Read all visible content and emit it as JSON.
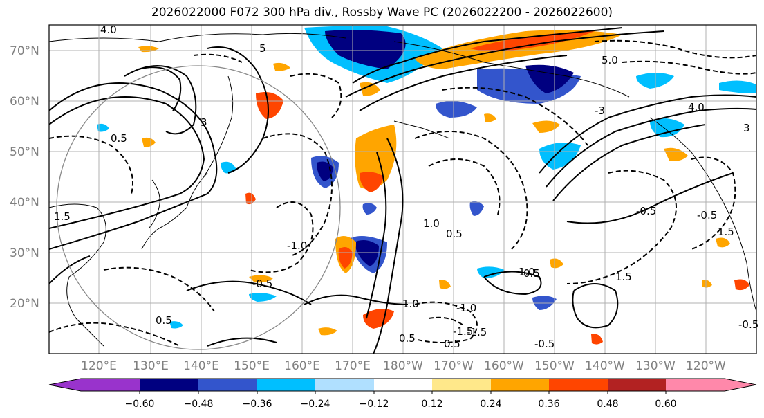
{
  "title": "2026022000 F072 300 hPa div., Rossby Wave PC (2026022200 - 2026022600)",
  "lat_labels": [
    "70°N",
    "60°N",
    "50°N",
    "40°N",
    "30°N",
    "20°N"
  ],
  "lon_labels": [
    "120°E",
    "130°E",
    "140°E",
    "150°E",
    "160°E",
    "170°E",
    "180°W",
    "170°W",
    "160°W",
    "150°W",
    "140°W",
    "130°W",
    "120°W"
  ],
  "colorbar": {
    "ticks": [
      "−0.60",
      "−0.48",
      "−0.36",
      "−0.24",
      "−0.12",
      "0.12",
      "0.24",
      "0.36",
      "0.48",
      "0.60"
    ],
    "colors": [
      "#9933cc",
      "#000080",
      "#3355cc",
      "#00bfff",
      "#b0e0ff",
      "#ffffff",
      "#ffe88a",
      "#ffa500",
      "#ff4500",
      "#b22222",
      "#ff88aa"
    ]
  },
  "contour_labels": [
    "4.0",
    "0.5",
    "1.5",
    "5",
    "-0.5",
    "-1.0",
    "1.0",
    "-1.5",
    "3",
    "-3",
    "1.5",
    "0.5",
    "-0.5",
    "0.5",
    "1.0",
    "-1.0",
    "0.5",
    "-1.5",
    "1.0",
    "0.5",
    "-0.5",
    "-0.5",
    "1.5",
    "-0.5",
    "0.5",
    "4.0",
    "3",
    "5.0"
  ],
  "colors": {
    "land": "#000000",
    "grid": "#b0b0b0",
    "circle": "#888888"
  }
}
